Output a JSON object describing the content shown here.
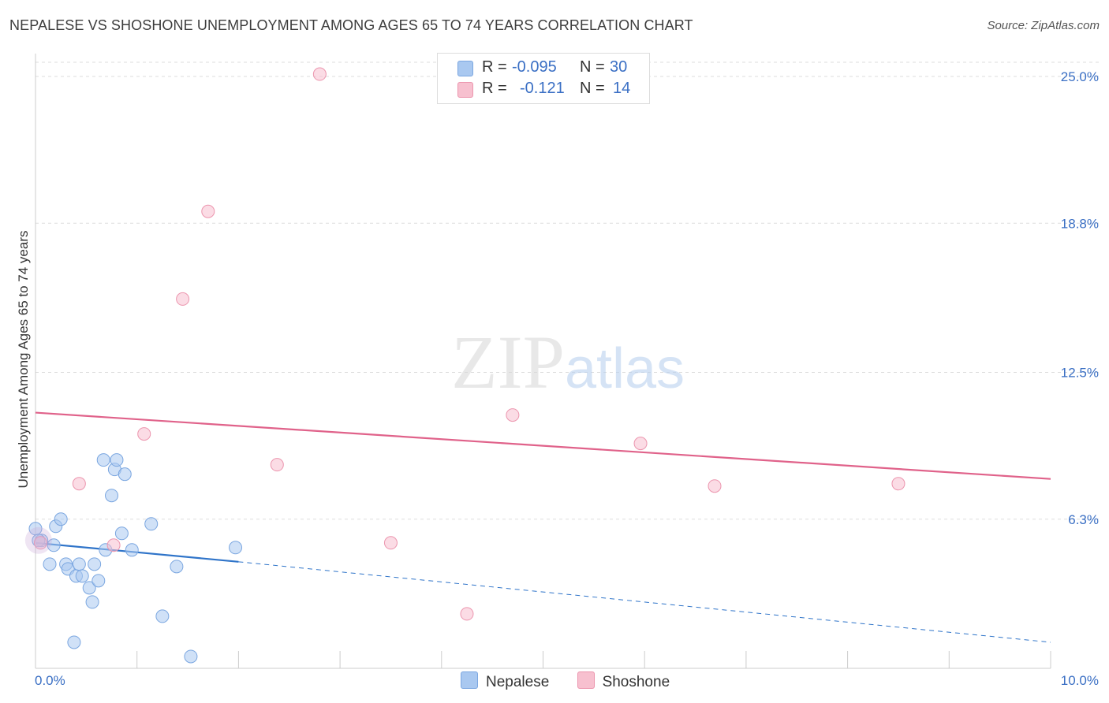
{
  "title": "NEPALESE VS SHOSHONE UNEMPLOYMENT AMONG AGES 65 TO 74 YEARS CORRELATION CHART",
  "source": "Source: ZipAtlas.com",
  "watermark": {
    "zip": "ZIP",
    "atlas": "atlas"
  },
  "legend_top": {
    "rows": [
      {
        "r_label": "R =",
        "r_value": "-0.095",
        "n_label": "N =",
        "n_value": "30",
        "color": "#a9c8f0",
        "border": "#7aa6e0"
      },
      {
        "r_label": "R =",
        "r_value": "-0.121",
        "n_label": "N =",
        "n_value": "14",
        "color": "#f7c0cf",
        "border": "#ec95ae"
      }
    ]
  },
  "legend_bottom": [
    {
      "label": "Nepalese",
      "color": "#a9c8f0",
      "border": "#7aa6e0"
    },
    {
      "label": "Shoshone",
      "color": "#f7c0cf",
      "border": "#ec95ae"
    }
  ],
  "chart_data": {
    "type": "scatter",
    "title": "NEPALESE VS SHOSHONE UNEMPLOYMENT AMONG AGES 65 TO 74 YEARS CORRELATION CHART",
    "xlabel": "",
    "ylabel": "Unemployment Among Ages 65 to 74 years",
    "xlim": [
      0,
      10
    ],
    "ylim": [
      0,
      25.6
    ],
    "x_tick_labels": [
      "0.0%",
      "10.0%"
    ],
    "y_ticks": [
      6.3,
      12.5,
      18.8,
      25.0
    ],
    "y_tick_labels": [
      "6.3%",
      "12.5%",
      "18.8%",
      "25.0%"
    ],
    "grid": true,
    "series": [
      {
        "name": "Nepalese",
        "color": "#a9c8f0",
        "stroke": "#7aa6e0",
        "line_color": "#2f74c9",
        "points": [
          {
            "x": 0.0,
            "y": 5.9
          },
          {
            "x": 0.06,
            "y": 5.4
          },
          {
            "x": 0.18,
            "y": 5.2
          },
          {
            "x": 0.2,
            "y": 6.0
          },
          {
            "x": 0.25,
            "y": 6.3
          },
          {
            "x": 0.14,
            "y": 4.4
          },
          {
            "x": 0.3,
            "y": 4.4
          },
          {
            "x": 0.32,
            "y": 4.2
          },
          {
            "x": 0.4,
            "y": 3.9
          },
          {
            "x": 0.43,
            "y": 4.4
          },
          {
            "x": 0.46,
            "y": 3.9
          },
          {
            "x": 0.53,
            "y": 3.4
          },
          {
            "x": 0.56,
            "y": 2.8
          },
          {
            "x": 0.58,
            "y": 4.4
          },
          {
            "x": 0.62,
            "y": 3.7
          },
          {
            "x": 0.67,
            "y": 8.8
          },
          {
            "x": 0.69,
            "y": 5.0
          },
          {
            "x": 0.75,
            "y": 7.3
          },
          {
            "x": 0.78,
            "y": 8.4
          },
          {
            "x": 0.8,
            "y": 8.8
          },
          {
            "x": 0.85,
            "y": 5.7
          },
          {
            "x": 0.88,
            "y": 8.2
          },
          {
            "x": 0.95,
            "y": 5.0
          },
          {
            "x": 1.14,
            "y": 6.1
          },
          {
            "x": 1.25,
            "y": 2.2
          },
          {
            "x": 1.39,
            "y": 4.3
          },
          {
            "x": 1.53,
            "y": 0.5
          },
          {
            "x": 1.97,
            "y": 5.1
          },
          {
            "x": 0.38,
            "y": 1.1
          },
          {
            "x": 0.03,
            "y": 5.4
          }
        ],
        "trend": {
          "x0": 0.0,
          "y0": 5.3,
          "x1": 2.0,
          "y1": 4.5,
          "dashed_to_x": 10.0,
          "dashed_to_y": 1.1
        }
      },
      {
        "name": "Shoshone",
        "color": "#f7c0cf",
        "stroke": "#ec95ae",
        "line_color": "#e0628a",
        "points": [
          {
            "x": 0.05,
            "y": 5.3
          },
          {
            "x": 0.43,
            "y": 7.8
          },
          {
            "x": 0.77,
            "y": 5.2
          },
          {
            "x": 1.07,
            "y": 9.9
          },
          {
            "x": 1.45,
            "y": 15.6
          },
          {
            "x": 1.7,
            "y": 19.3
          },
          {
            "x": 2.38,
            "y": 8.6
          },
          {
            "x": 2.8,
            "y": 25.1
          },
          {
            "x": 3.5,
            "y": 5.3
          },
          {
            "x": 4.25,
            "y": 2.3
          },
          {
            "x": 4.7,
            "y": 10.7
          },
          {
            "x": 5.96,
            "y": 9.5
          },
          {
            "x": 6.69,
            "y": 7.7
          },
          {
            "x": 8.5,
            "y": 7.8
          }
        ],
        "trend": {
          "x0": 0.0,
          "y0": 10.8,
          "x1": 10.0,
          "y1": 8.0
        }
      }
    ]
  }
}
